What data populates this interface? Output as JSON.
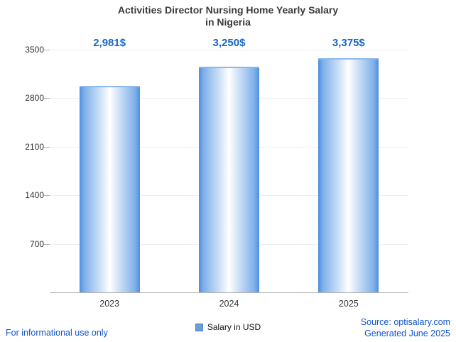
{
  "title": {
    "line1": "Activities Director Nursing Home Yearly Salary",
    "line2": "in Nigeria"
  },
  "chart_data": {
    "type": "bar",
    "title": "Activities Director Nursing Home Yearly Salary in Nigeria",
    "categories": [
      "2023",
      "2024",
      "2025"
    ],
    "values": [
      2981,
      3250,
      3375
    ],
    "value_labels": [
      "2,981$",
      "3,250$",
      "3,375$"
    ],
    "series_name": "Salary in USD",
    "xlabel": "",
    "ylabel": "",
    "ylim": [
      0,
      3500
    ],
    "yticks": [
      700,
      1400,
      2100,
      2800,
      3500
    ],
    "grid": true,
    "legend_position": "bottom",
    "bar_color_edge": "#4e8fe0",
    "bar_color_center": "#ffffff",
    "value_label_color": "#1666c9"
  },
  "legend": {
    "label": "Salary in USD",
    "swatch_color": "#6f9ed6"
  },
  "footer": {
    "left": "For informational use only",
    "source": "Source: optisalary.com",
    "generated": "Generated June 2025"
  }
}
